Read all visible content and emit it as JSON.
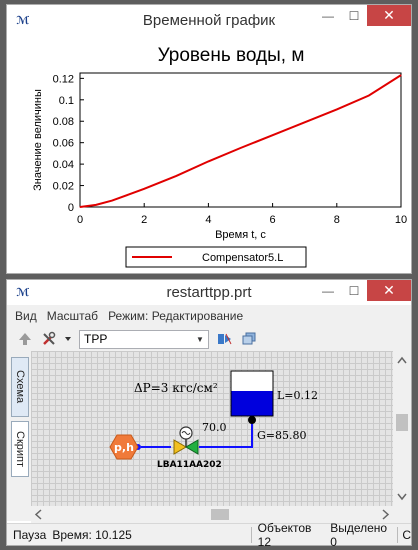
{
  "chart_window": {
    "title": "Временной график",
    "controls": {
      "minimize": "—",
      "maximize": "☐",
      "close": "✕"
    }
  },
  "chart_data": {
    "type": "line",
    "title": "Уровень воды, м",
    "xlabel": "Время t, с",
    "ylabel": "Значение величины",
    "xlim": [
      0,
      10
    ],
    "ylim": [
      0,
      0.125
    ],
    "xticks": [
      0,
      2,
      4,
      6,
      8,
      10
    ],
    "yticks": [
      0,
      0.02,
      0.04,
      0.06,
      0.08,
      0.1,
      0.12
    ],
    "ytick_labels": [
      "0",
      "0.02",
      "0.04",
      "0.06",
      "0.08",
      "0.1",
      "0.12"
    ],
    "grid": false,
    "legend_position": "bottom",
    "series": [
      {
        "name": "Compensator5.L",
        "color": "#e00000",
        "x": [
          0,
          0.5,
          1,
          1.5,
          2,
          3,
          4,
          5,
          6,
          7,
          8,
          9,
          10
        ],
        "y": [
          0,
          0.002,
          0.006,
          0.0115,
          0.017,
          0.029,
          0.0425,
          0.055,
          0.067,
          0.079,
          0.091,
          0.104,
          0.123
        ]
      }
    ]
  },
  "editor_window": {
    "title": "restarttpp.prt",
    "controls": {
      "minimize": "—",
      "maximize": "☐",
      "close": "✕"
    },
    "menu": [
      "Вид",
      "Масштаб",
      "Режим: Редактирование"
    ],
    "combo_value": "TPP",
    "side_tabs": [
      "Схема",
      "Скрипт"
    ],
    "diagram": {
      "delta_p": "ΔP=3 кгс/см²",
      "tank_level": "L=0.12",
      "flow": "G=85.80",
      "valve_open": "70.0",
      "valve_name": "LBA11AA202",
      "source_label": "p,h",
      "tank_level_fraction": 0.55
    },
    "status": {
      "state": "Пауза",
      "time": "Время: 10.125",
      "objects": "Объектов 12",
      "selected": "Выделено 0",
      "extra": "С"
    }
  }
}
